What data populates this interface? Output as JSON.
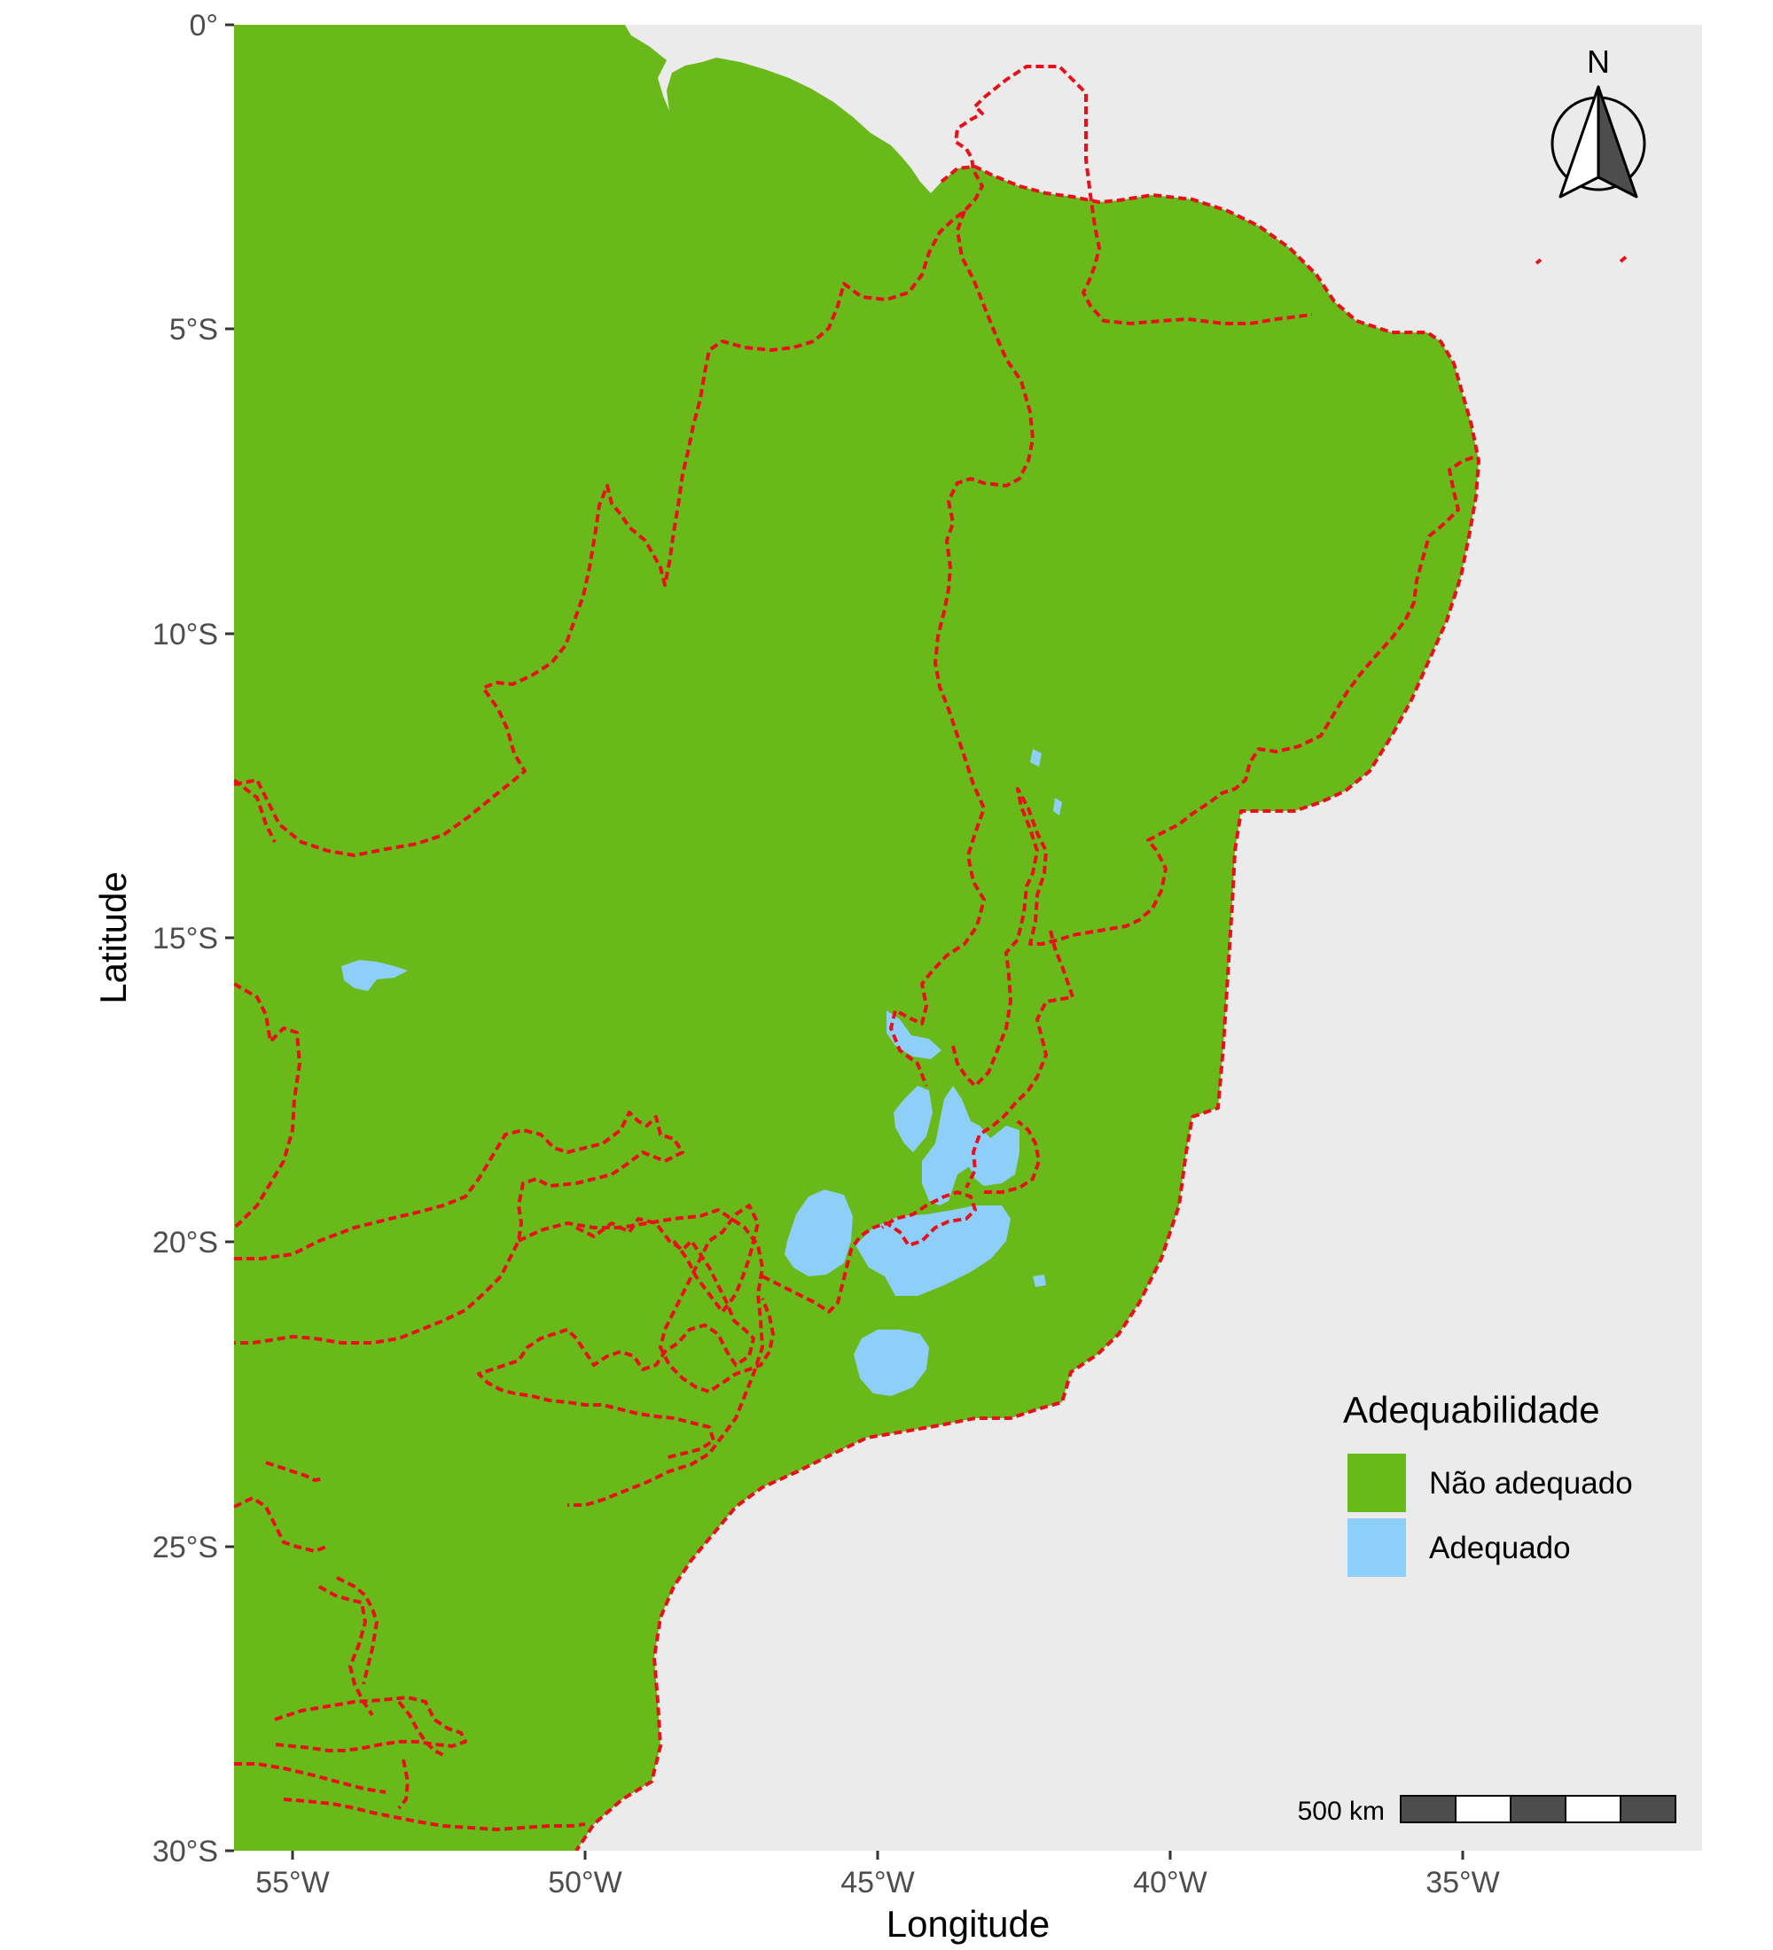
{
  "map": {
    "x_axis_title": "Longitude",
    "y_axis_title": "Latitude",
    "x_ticks": [
      "55°W",
      "50°W",
      "45°W",
      "40°W",
      "35°W"
    ],
    "y_ticks": [
      "0°",
      "5°S",
      "10°S",
      "15°S",
      "20°S",
      "25°S",
      "30°S"
    ],
    "north_arrow_label": "N",
    "scale_bar_label": "500 km"
  },
  "legend": {
    "title": "Adequabilidade",
    "items": [
      {
        "label": "Não adequado",
        "color": "#6ab91a"
      },
      {
        "label": "Adequado",
        "color": "#8dcff9"
      }
    ]
  },
  "colors": {
    "panel_background": "#ebebeb",
    "land_unsuitable": "#6ab91a",
    "land_suitable": "#8dcff9",
    "boundary": "#e8101a",
    "outside_region": "#bebebe"
  }
}
